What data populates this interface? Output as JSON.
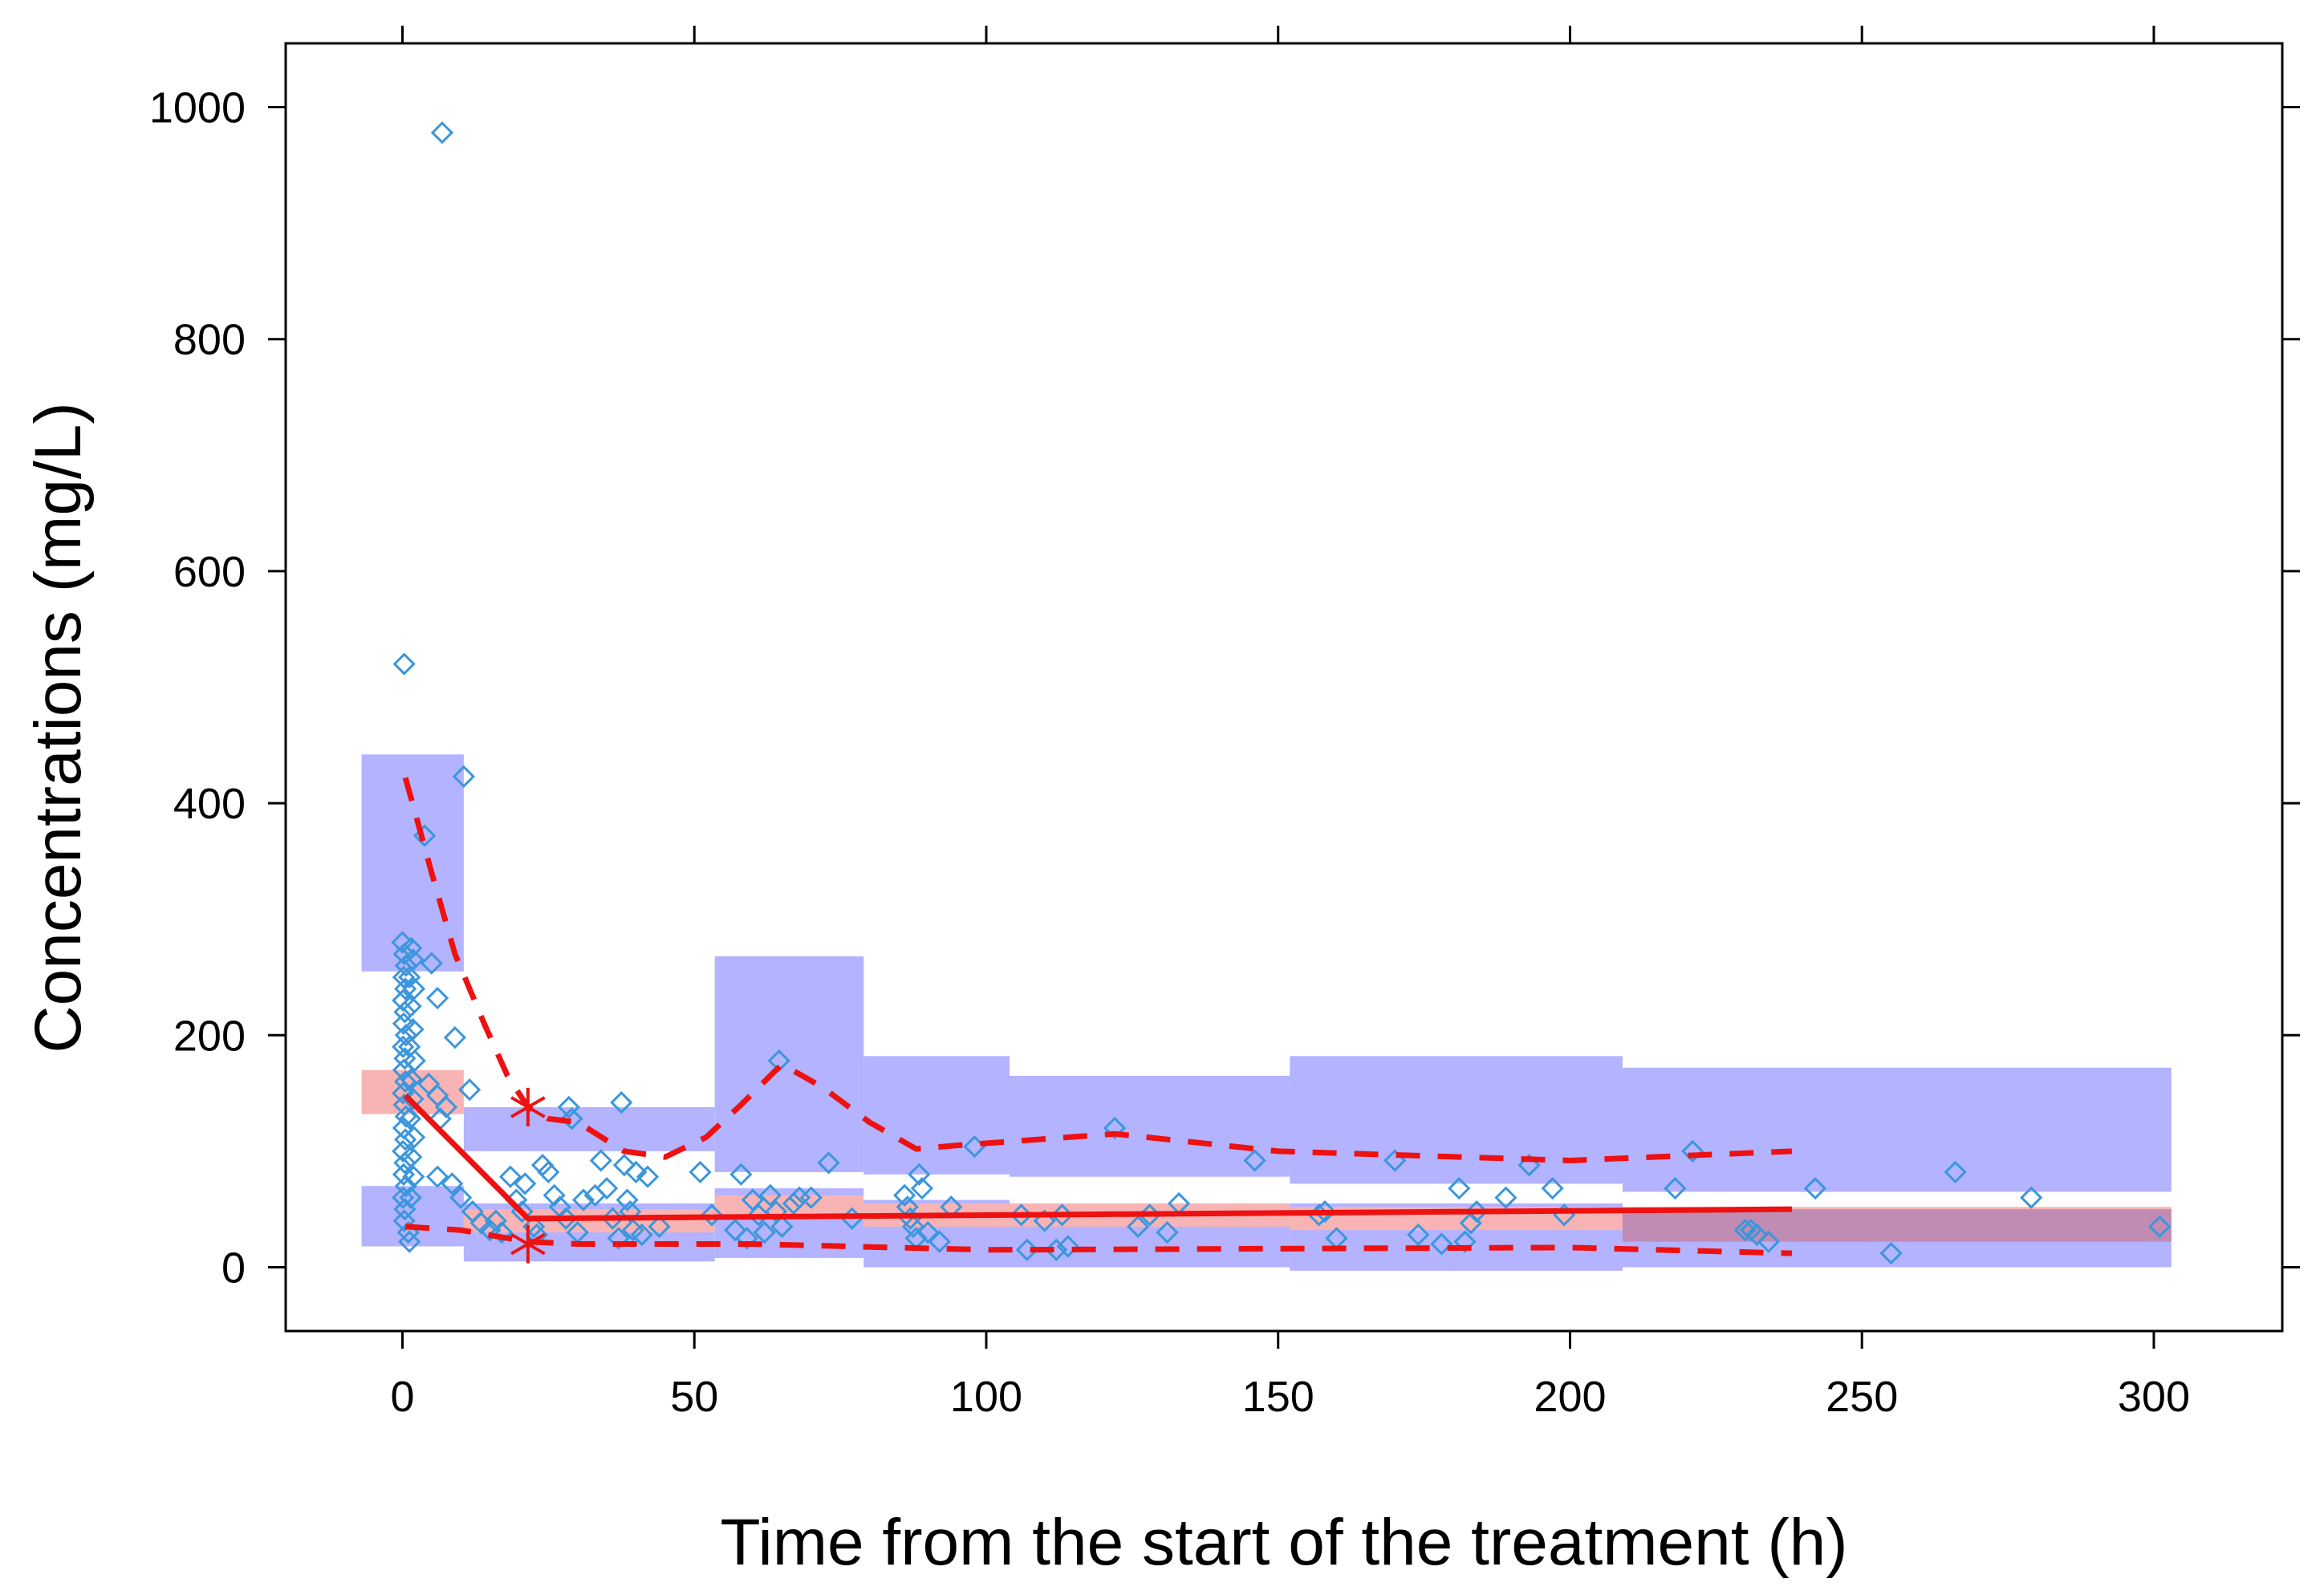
{
  "chart_data": {
    "type": "scatter",
    "title": "",
    "xlabel": "Time from the start of the treatment (h)",
    "ylabel": "Concentrations (mg/L)",
    "xlim": [
      -20,
      322
    ],
    "ylim": [
      -55,
      1055
    ],
    "x_ticks": [
      0,
      50,
      100,
      150,
      200,
      250,
      300
    ],
    "y_ticks": [
      0,
      200,
      400,
      600,
      800,
      1000
    ],
    "x_tick_labels": [
      "0",
      "50",
      "100",
      "150",
      "200",
      "250",
      "300"
    ],
    "y_tick_labels": [
      "0",
      "200",
      "400",
      "600",
      "800",
      "1000"
    ],
    "grid": false,
    "legend": "none",
    "colors": {
      "observed": "#3c96dc",
      "pi_band": "#b3b3ff",
      "median_band": "#f8b4b4",
      "median_band_overlap": "#c08cb4",
      "lines": "#ee1111",
      "axis": "#000000"
    },
    "observed_points": [
      [
        0.3,
        520
      ],
      [
        6.8,
        978
      ],
      [
        10.5,
        423
      ],
      [
        3.8,
        372
      ],
      [
        0,
        280
      ],
      [
        0.3,
        270
      ],
      [
        0.6,
        260
      ],
      [
        0.2,
        250
      ],
      [
        0.5,
        240
      ],
      [
        0.1,
        230
      ],
      [
        0.4,
        220
      ],
      [
        0.2,
        210
      ],
      [
        0.6,
        200
      ],
      [
        0.1,
        190
      ],
      [
        0.4,
        180
      ],
      [
        0.2,
        170
      ],
      [
        0.5,
        160
      ],
      [
        0.1,
        150
      ],
      [
        0.3,
        140
      ],
      [
        0.6,
        130
      ],
      [
        0.2,
        120
      ],
      [
        0.5,
        110
      ],
      [
        0.1,
        100
      ],
      [
        0.4,
        90
      ],
      [
        0.2,
        80
      ],
      [
        0.6,
        70
      ],
      [
        0.1,
        60
      ],
      [
        0.4,
        50
      ],
      [
        0.3,
        40
      ],
      [
        1.0,
        30
      ],
      [
        1.2,
        22
      ],
      [
        1.5,
        275
      ],
      [
        1.8,
        265
      ],
      [
        1.2,
        250
      ],
      [
        2.0,
        240
      ],
      [
        1.4,
        225
      ],
      [
        1.8,
        205
      ],
      [
        1.2,
        190
      ],
      [
        2.1,
        178
      ],
      [
        1.5,
        162
      ],
      [
        1.8,
        145
      ],
      [
        1.3,
        128
      ],
      [
        2.0,
        112
      ],
      [
        1.5,
        95
      ],
      [
        1.9,
        78
      ],
      [
        1.4,
        60
      ],
      [
        5.0,
        262
      ],
      [
        6.0,
        232
      ],
      [
        9.0,
        198
      ],
      [
        4.5,
        158
      ],
      [
        6.0,
        148
      ],
      [
        7.5,
        138
      ],
      [
        11.5,
        153
      ],
      [
        6.5,
        128
      ],
      [
        6.0,
        78
      ],
      [
        8.5,
        72
      ],
      [
        10.0,
        60
      ],
      [
        12.0,
        48
      ],
      [
        13.5,
        38
      ],
      [
        15.0,
        32
      ],
      [
        16.0,
        40
      ],
      [
        17.0,
        30
      ],
      [
        18.5,
        78
      ],
      [
        19.5,
        58
      ],
      [
        20.5,
        48
      ],
      [
        21.0,
        72
      ],
      [
        22.5,
        35
      ],
      [
        23.0,
        28
      ],
      [
        24.0,
        88
      ],
      [
        25.0,
        82
      ],
      [
        26.0,
        62
      ],
      [
        27.0,
        52
      ],
      [
        28.0,
        42
      ],
      [
        28.5,
        138
      ],
      [
        29.0,
        128
      ],
      [
        30.0,
        30
      ],
      [
        31.0,
        58
      ],
      [
        33.0,
        62
      ],
      [
        34.0,
        92
      ],
      [
        35.0,
        68
      ],
      [
        36.0,
        42
      ],
      [
        37.0,
        25
      ],
      [
        37.5,
        142
      ],
      [
        38.0,
        88
      ],
      [
        38.5,
        58
      ],
      [
        39.0,
        48
      ],
      [
        39.5,
        32
      ],
      [
        40.0,
        82
      ],
      [
        41.0,
        28
      ],
      [
        42.0,
        78
      ],
      [
        44.0,
        35
      ],
      [
        51.0,
        82
      ],
      [
        53.0,
        45
      ],
      [
        57.0,
        32
      ],
      [
        58.0,
        80
      ],
      [
        59.0,
        25
      ],
      [
        60.0,
        58
      ],
      [
        61.0,
        45
      ],
      [
        62.0,
        30
      ],
      [
        63.0,
        62
      ],
      [
        64.0,
        48
      ],
      [
        64.5,
        178
      ],
      [
        65.0,
        35
      ],
      [
        67.0,
        55
      ],
      [
        68.0,
        60
      ],
      [
        70.0,
        60
      ],
      [
        73.0,
        90
      ],
      [
        77.0,
        42
      ],
      [
        86.0,
        62
      ],
      [
        86.5,
        52
      ],
      [
        87.0,
        42
      ],
      [
        87.5,
        35
      ],
      [
        88.0,
        25
      ],
      [
        88.5,
        80
      ],
      [
        89.0,
        68
      ],
      [
        90.0,
        30
      ],
      [
        92.0,
        22
      ],
      [
        94.0,
        52
      ],
      [
        98.0,
        104
      ],
      [
        106.0,
        45
      ],
      [
        107.0,
        15
      ],
      [
        110.0,
        40
      ],
      [
        112.0,
        15
      ],
      [
        113.0,
        45
      ],
      [
        114.0,
        18
      ],
      [
        122.0,
        120
      ],
      [
        126.0,
        35
      ],
      [
        128.0,
        45
      ],
      [
        131.0,
        30
      ],
      [
        133.0,
        55
      ],
      [
        146.0,
        92
      ],
      [
        157.0,
        45
      ],
      [
        158.0,
        48
      ],
      [
        160.0,
        25
      ],
      [
        170.0,
        92
      ],
      [
        174.0,
        28
      ],
      [
        178.0,
        20
      ],
      [
        181.0,
        68
      ],
      [
        182.0,
        22
      ],
      [
        183.0,
        38
      ],
      [
        184.0,
        48
      ],
      [
        189.0,
        60
      ],
      [
        193.0,
        88
      ],
      [
        197.0,
        68
      ],
      [
        199.0,
        45
      ],
      [
        218.0,
        68
      ],
      [
        221.0,
        100
      ],
      [
        230.0,
        32
      ],
      [
        231.0,
        32
      ],
      [
        232.0,
        28
      ],
      [
        234.0,
        22
      ],
      [
        242.0,
        68
      ],
      [
        255.0,
        12
      ],
      [
        266.0,
        82
      ],
      [
        279.0,
        60
      ],
      [
        301.0,
        35
      ]
    ],
    "pi_upper_band": [
      {
        "x": [
          -7,
          10.5
        ],
        "y": [
          255,
          442
        ]
      },
      {
        "x": [
          10.5,
          53.5
        ],
        "y": [
          100,
          138
        ]
      },
      {
        "x": [
          53.5,
          79
        ],
        "y": [
          82,
          268
        ]
      },
      {
        "x": [
          79,
          104
        ],
        "y": [
          80,
          182
        ]
      },
      {
        "x": [
          104,
          152
        ],
        "y": [
          78,
          165
        ]
      },
      {
        "x": [
          152,
          209
        ],
        "y": [
          72,
          182
        ]
      },
      {
        "x": [
          209,
          303
        ],
        "y": [
          65,
          172
        ]
      }
    ],
    "pi_lower_band": [
      {
        "x": [
          -7,
          10.5
        ],
        "y": [
          18,
          70
        ]
      },
      {
        "x": [
          10.5,
          53.5
        ],
        "y": [
          5,
          55
        ]
      },
      {
        "x": [
          53.5,
          79
        ],
        "y": [
          8,
          68
        ]
      },
      {
        "x": [
          79,
          104
        ],
        "y": [
          0,
          58
        ]
      },
      {
        "x": [
          104,
          152
        ],
        "y": [
          0,
          55
        ]
      },
      {
        "x": [
          152,
          209
        ],
        "y": [
          -3,
          55
        ]
      },
      {
        "x": [
          209,
          303
        ],
        "y": [
          0,
          50
        ]
      }
    ],
    "median_band": [
      {
        "x": [
          -7,
          10.5
        ],
        "y": [
          132,
          170
        ]
      },
      {
        "x": [
          10.5,
          53.5
        ],
        "y": [
          30,
          50
        ]
      },
      {
        "x": [
          53.5,
          79
        ],
        "y": [
          42,
          62
        ]
      },
      {
        "x": [
          79,
          104
        ],
        "y": [
          35,
          55
        ]
      },
      {
        "x": [
          104,
          152
        ],
        "y": [
          35,
          55
        ]
      },
      {
        "x": [
          152,
          209
        ],
        "y": [
          32,
          52
        ]
      },
      {
        "x": [
          209,
          303
        ],
        "y": [
          22,
          52
        ]
      }
    ],
    "median_line": {
      "x": [
        0.5,
        21.5,
        238
      ],
      "y": [
        148,
        42,
        50
      ]
    },
    "p95_line": {
      "x": [
        0.5,
        2,
        5,
        9,
        14,
        18,
        21.5,
        25,
        30,
        38,
        45,
        52,
        58,
        65,
        72,
        80,
        88,
        95,
        122,
        150,
        200,
        238
      ],
      "y": [
        422,
        395,
        340,
        270,
        210,
        165,
        138,
        128,
        125,
        100,
        95,
        112,
        140,
        175,
        155,
        125,
        102,
        105,
        115,
        100,
        92,
        100
      ]
    },
    "p05_line": {
      "x": [
        0.5,
        10,
        21.5,
        30,
        60,
        100,
        150,
        200,
        238
      ],
      "y": [
        35,
        32,
        22,
        20,
        20,
        15,
        16,
        17,
        12
      ]
    },
    "markers": [
      {
        "x": 21.5,
        "y": 138
      },
      {
        "x": 21.5,
        "y": 20
      }
    ]
  }
}
